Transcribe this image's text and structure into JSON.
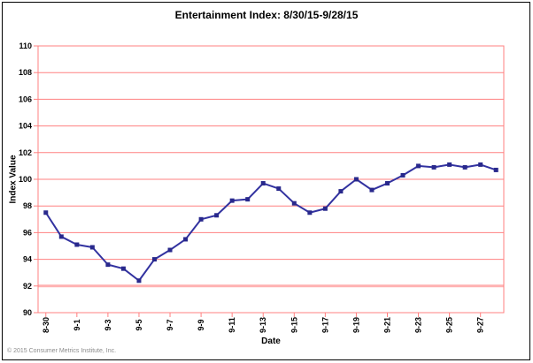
{
  "page": {
    "title": "Entertainment Index: 8/30/15-9/28/15",
    "footer_copyright": "© 2015 Consumer Metrics Institute, Inc."
  },
  "chart_data": {
    "type": "line",
    "title": "Entertainment Index: 8/30/15-9/28/15",
    "xlabel": "Date",
    "ylabel": "Index Value",
    "ylim": [
      90,
      110
    ],
    "ytick_step": 2,
    "grid": true,
    "legend": "none",
    "x_tick_labels": [
      "8-30",
      "9-1",
      "9-3",
      "9-5",
      "9-7",
      "9-9",
      "9-11",
      "9-13",
      "9-15",
      "9-17",
      "9-19",
      "9-21",
      "9-23",
      "9-25",
      "9-27"
    ],
    "categories": [
      "8-30",
      "8-31",
      "9-1",
      "9-2",
      "9-3",
      "9-4",
      "9-5",
      "9-6",
      "9-7",
      "9-8",
      "9-9",
      "9-10",
      "9-11",
      "9-12",
      "9-13",
      "9-14",
      "9-15",
      "9-16",
      "9-17",
      "9-18",
      "9-19",
      "9-20",
      "9-21",
      "9-22",
      "9-23",
      "9-24",
      "9-25",
      "9-26",
      "9-27",
      "9-28"
    ],
    "series": [
      {
        "name": "Entertainment Index",
        "values": [
          97.5,
          95.7,
          95.1,
          94.9,
          93.6,
          93.3,
          92.4,
          94.0,
          94.7,
          95.5,
          97.0,
          97.3,
          98.4,
          98.5,
          99.7,
          99.3,
          98.2,
          97.5,
          97.8,
          99.1,
          100.0,
          99.2,
          99.7,
          100.3,
          101.0,
          100.9,
          101.1,
          100.9,
          101.1,
          100.7
        ]
      }
    ],
    "colors": {
      "line": "#3232A0",
      "marker": "#28288C",
      "grid": "#FF8080",
      "grid_emphasis": "#FFB2B2",
      "axis": "#FF8080",
      "title_text": "#000000",
      "footer_text": "#8C8C8C"
    }
  }
}
